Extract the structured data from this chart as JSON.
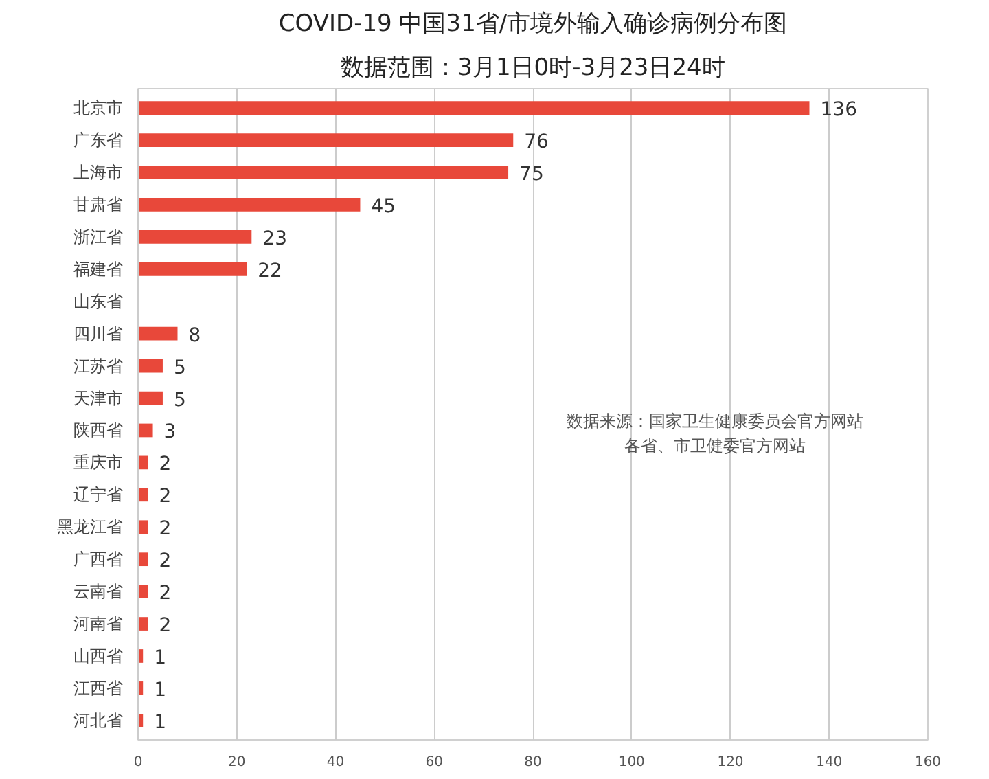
{
  "chart_data": {
    "type": "bar",
    "orientation": "horizontal",
    "title": "COVID-19 中国31省/市境外输入确诊病例分布图",
    "subtitle": "数据范围：3月1日0时-3月23日24时",
    "categories": [
      "北京市",
      "广东省",
      "上海市",
      "甘肃省",
      "浙江省",
      "福建省",
      "山东省",
      "四川省",
      "江苏省",
      "天津市",
      "陕西省",
      "重庆市",
      "辽宁省",
      "黑龙江省",
      "广西省",
      "云南省",
      "河南省",
      "山西省",
      "江西省",
      "河北省"
    ],
    "values": [
      136,
      76,
      75,
      45,
      23,
      22,
      null,
      8,
      5,
      5,
      3,
      2,
      2,
      2,
      2,
      2,
      2,
      1,
      1,
      1
    ],
    "color": "#e8483a",
    "xlim": [
      0,
      160
    ],
    "xticks": [
      0,
      20,
      40,
      60,
      80,
      100,
      120,
      140,
      160
    ],
    "grid": "x",
    "data_labels": true,
    "annotations": [
      "数据来源：国家卫生健康委员会官方网站",
      "各省、市卫健委官方网站"
    ]
  }
}
